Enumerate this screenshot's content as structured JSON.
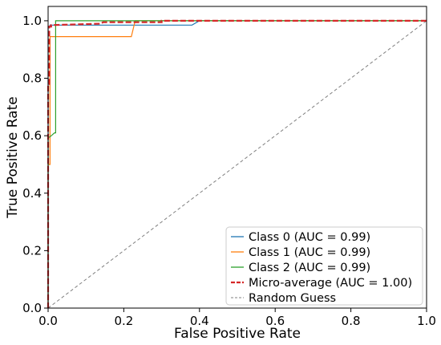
{
  "chart_data": {
    "type": "line",
    "title": "",
    "xlabel": "False Positive Rate",
    "ylabel": "True Positive Rate",
    "xlim": [
      0.0,
      1.0
    ],
    "ylim": [
      0.0,
      1.05
    ],
    "xticks": [
      "0.0",
      "0.2",
      "0.4",
      "0.6",
      "0.8",
      "1.0"
    ],
    "yticks": [
      "0.0",
      "0.2",
      "0.4",
      "0.6",
      "0.8",
      "1.0"
    ],
    "grid": false,
    "legend_position": "lower-right",
    "series": [
      {
        "name": "Class 0 (AUC = 0.99)",
        "color": "#1f77b4",
        "style": "solid",
        "x": [
          0.0,
          0.0,
          0.0,
          0.005,
          0.005,
          0.38,
          0.4,
          1.0
        ],
        "y": [
          0.0,
          0.5,
          0.98,
          0.98,
          0.985,
          0.985,
          1.0,
          1.0
        ]
      },
      {
        "name": "Class 1 (AUC = 0.99)",
        "color": "#ff7f0e",
        "style": "solid",
        "x": [
          0.0,
          0.0,
          0.005,
          0.005,
          0.22,
          0.23,
          1.0
        ],
        "y": [
          0.0,
          0.5,
          0.5,
          0.945,
          0.945,
          1.0,
          1.0
        ]
      },
      {
        "name": "Class 2 (AUC = 0.99)",
        "color": "#2ca02c",
        "style": "solid",
        "x": [
          0.0,
          0.0,
          0.004,
          0.017,
          0.02,
          0.02,
          1.0
        ],
        "y": [
          0.0,
          0.595,
          0.595,
          0.61,
          0.61,
          1.0,
          1.0
        ]
      },
      {
        "name": "Micro-average (AUC = 1.00)",
        "color": "#d62728",
        "style": "dashed",
        "x": [
          0.0,
          0.0,
          0.003,
          0.003,
          0.008,
          0.008,
          0.14,
          0.145,
          0.3,
          0.3,
          1.0
        ],
        "y": [
          0.0,
          0.78,
          0.78,
          0.98,
          0.98,
          0.985,
          0.99,
          0.995,
          0.995,
          1.0,
          1.0
        ]
      },
      {
        "name": "Random Guess",
        "color": "#808080",
        "style": "dashed",
        "x": [
          0.0,
          1.0
        ],
        "y": [
          0.0,
          1.0
        ]
      }
    ]
  }
}
